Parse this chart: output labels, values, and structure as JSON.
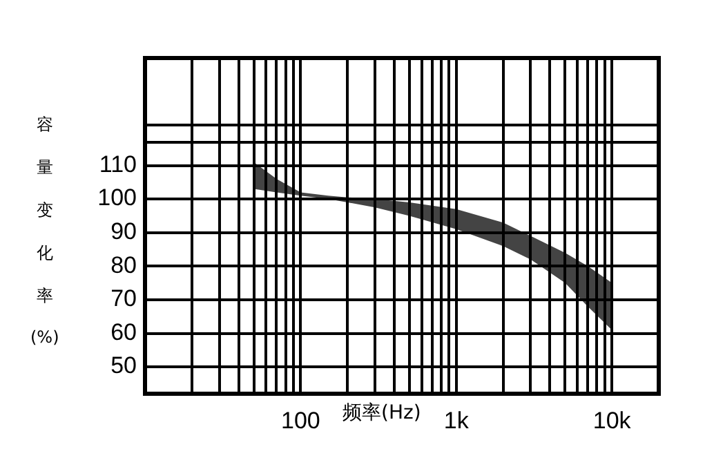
{
  "chart_data": {
    "type": "line",
    "xlabel": "频率(Hz)",
    "ylabel": "容量变化率(%)",
    "log": "x",
    "x": [
      50,
      70,
      100,
      150,
      200,
      300,
      500,
      1000,
      2000,
      3000,
      5000,
      7000,
      10000
    ],
    "series": [
      {
        "color": "#000000",
        "values": [
          null,
          null,
          null,
          null,
          null,
          null,
          null,
          null,
          null,
          null,
          null,
          null,
          null
        ],
        "upper": [
          111,
          106,
          102,
          101,
          100.5,
          100,
          99,
          97,
          93,
          89,
          84,
          80,
          75
        ],
        "lower": [
          103,
          102,
          101,
          100,
          99,
          97.5,
          95,
          91,
          86,
          82,
          75,
          68,
          61
        ]
      }
    ],
    "xlim": [
      10,
      20000
    ],
    "xticks": [
      {
        "value": 20,
        "label": null
      },
      {
        "value": 30,
        "label": null
      },
      {
        "value": 40,
        "label": null
      },
      {
        "value": 50,
        "label": null
      },
      {
        "value": 60,
        "label": null
      },
      {
        "value": 70,
        "label": null
      },
      {
        "value": 80,
        "label": null
      },
      {
        "value": 90,
        "label": null
      },
      100,
      {
        "value": 200,
        "label": null
      },
      {
        "value": 300,
        "label": null
      },
      {
        "value": 400,
        "label": null
      },
      {
        "value": 500,
        "label": null
      },
      {
        "value": 600,
        "label": null
      },
      {
        "value": 700,
        "label": null
      },
      {
        "value": 800,
        "label": null
      },
      {
        "value": 900,
        "label": null
      },
      {
        "value": 1000,
        "label": "1k"
      },
      {
        "value": 2000,
        "label": null
      },
      {
        "value": 3000,
        "label": null
      },
      {
        "value": 4000,
        "label": null
      },
      {
        "value": 5000,
        "label": null
      },
      {
        "value": 6000,
        "label": null
      },
      {
        "value": 7000,
        "label": null
      },
      {
        "value": 8000,
        "label": null
      },
      {
        "value": 9000,
        "label": null
      },
      {
        "value": 10000,
        "label": "10k"
      }
    ],
    "ylim": [
      42,
      142
    ],
    "yticks": [
      50,
      60,
      70,
      80,
      90,
      100,
      110,
      {
        "value": 117,
        "label": null
      },
      {
        "value": 122,
        "label": null
      }
    ],
    "grid": true,
    "legend": false
  }
}
